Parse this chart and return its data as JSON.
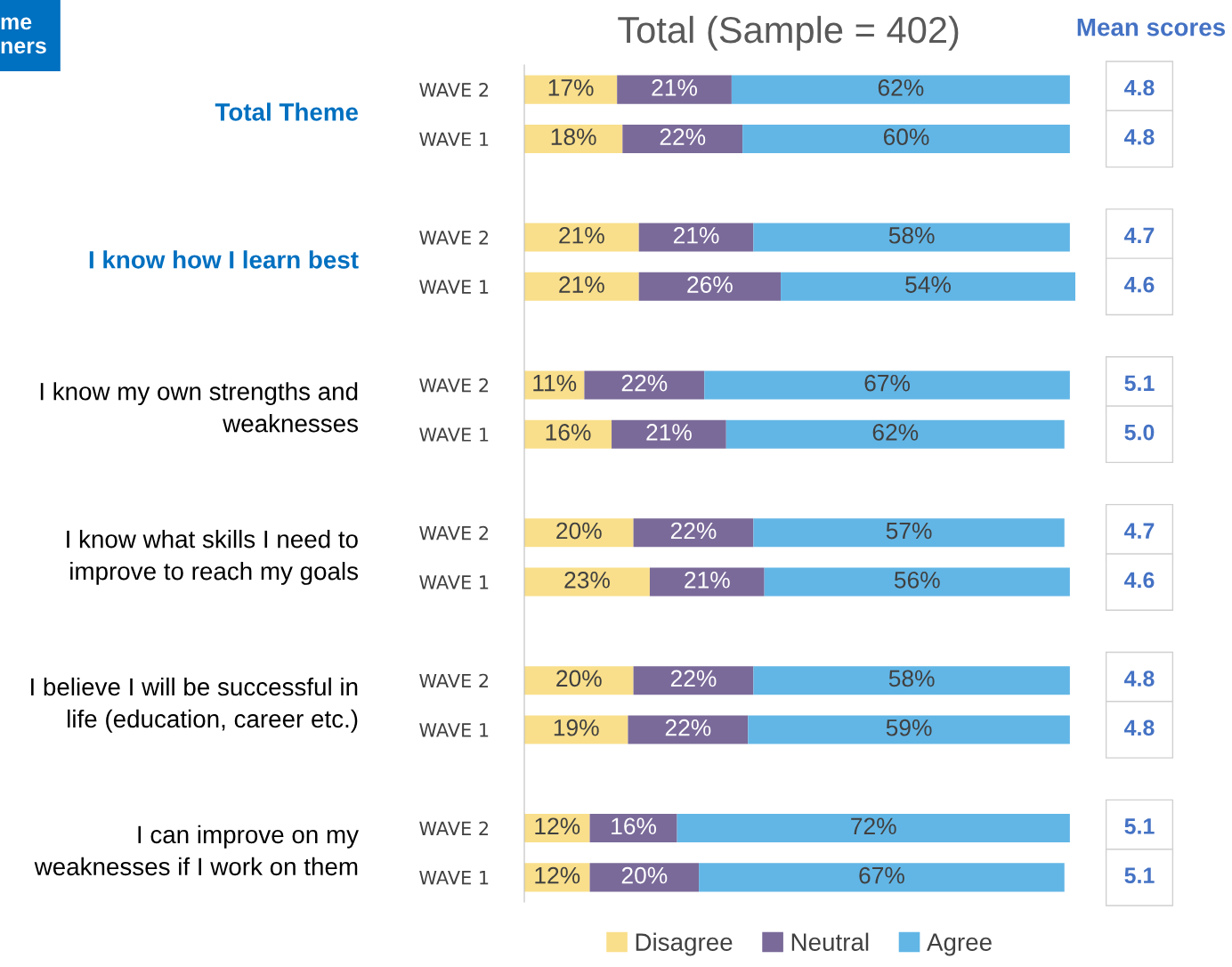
{
  "chart_data": {
    "type": "bar",
    "orientation": "horizontal",
    "stacked": true,
    "title": "Total (Sample = 402)",
    "categories": [
      "WAVE 2",
      "WAVE 1",
      "WAVE 2",
      "WAVE 1",
      "WAVE 2",
      "WAVE 1",
      "WAVE 2",
      "WAVE 1",
      "WAVE 2",
      "WAVE 1",
      "WAVE 2",
      "WAVE 1"
    ],
    "series": [
      {
        "name": "Disagree",
        "color": "#f9df8b",
        "values": [
          17,
          18,
          21,
          21,
          11,
          16,
          20,
          23,
          20,
          19,
          12,
          12
        ],
        "value_labels": [
          "17%",
          "18%",
          "21%",
          "21%",
          "11%",
          "16%",
          "20%",
          "23%",
          "20%",
          "19%",
          "12%",
          "12%"
        ]
      },
      {
        "name": "Neutral",
        "color": "#7a6a99",
        "values": [
          21,
          22,
          21,
          26,
          22,
          21,
          22,
          21,
          22,
          22,
          16,
          20
        ],
        "value_labels": [
          "21%",
          "22%",
          "21%",
          "26%",
          "22%",
          "21%",
          "22%",
          "21%",
          "22%",
          "22%",
          "16%",
          "20%"
        ]
      },
      {
        "name": "Agree",
        "color": "#62b6e6",
        "values": [
          62,
          60,
          58,
          54,
          67,
          62,
          57,
          56,
          58,
          59,
          72,
          67
        ],
        "value_labels": [
          "62%",
          "60%",
          "58%",
          "54%",
          "67%",
          "62%",
          "57%",
          "56%",
          "58%",
          "59%",
          "72%",
          "67%"
        ]
      }
    ],
    "annotations": [
      "me\nners",
      "Total Theme",
      "I know how I learn best",
      "I know my own strengths and\nweaknesses",
      "I know what skills I need to\nimprove to reach my goals",
      "I believe I will be successful in\nlife (education, career etc.)",
      "I can improve on my\nweaknesses if I work on them",
      "Mean scores",
      "4.8",
      "4.8",
      "4.7",
      "4.6",
      "5.1",
      "5.0",
      "4.7",
      "4.6",
      "4.8",
      "4.8",
      "5.1",
      "5.1"
    ],
    "legend": "bottom",
    "tick_labels": "y",
    "grid": false
  }
}
